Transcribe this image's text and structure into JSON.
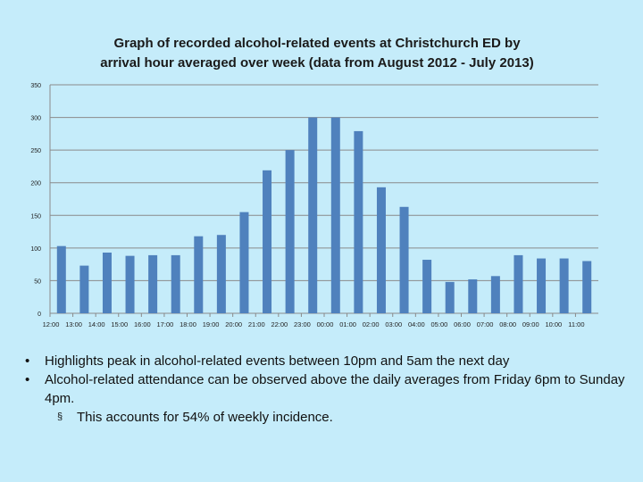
{
  "chart_data": {
    "type": "bar",
    "title_line1": "Graph of recorded alcohol-related events at Christchurch ED by",
    "title_line2": "arrival hour averaged over week (data from August 2012 - July 2013)",
    "categories": [
      "12:00",
      "13:00",
      "14:00",
      "15:00",
      "16:00",
      "17:00",
      "18:00",
      "19:00",
      "20:00",
      "21:00",
      "22:00",
      "23:00",
      "00:00",
      "01:00",
      "02:00",
      "03:00",
      "04:00",
      "05:00",
      "06:00",
      "07:00",
      "08:00",
      "09:00",
      "10:00",
      "11:00"
    ],
    "values": [
      103,
      73,
      93,
      88,
      89,
      89,
      118,
      120,
      155,
      219,
      250,
      300,
      300,
      279,
      193,
      163,
      82,
      48,
      52,
      57,
      89,
      84,
      84,
      80
    ],
    "yticks": [
      0,
      50,
      100,
      150,
      200,
      250,
      300,
      350
    ],
    "ylim": [
      0,
      350
    ],
    "grid": true,
    "bar_color": "#4f81bd",
    "xlabel": "",
    "ylabel": ""
  },
  "bullets": {
    "items": [
      "Highlights peak in alcohol-related events between 10pm and 5am the next day",
      "Alcohol-related attendance can be observed above the daily averages from Friday 6pm to Sunday 4pm."
    ],
    "sub_item": "This accounts for 54% of weekly incidence.",
    "bullet_glyph": "•",
    "sub_bullet_glyph": "§"
  }
}
